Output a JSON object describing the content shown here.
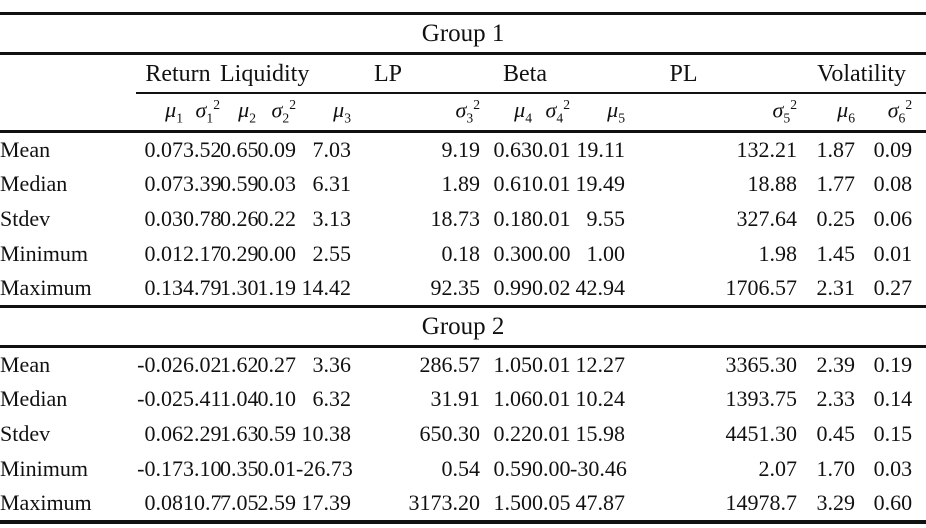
{
  "table": {
    "group1_title": "Group 1",
    "group2_title": "Group 2",
    "variable_headers": [
      "Return",
      "Liquidity",
      "LP",
      "Beta",
      "PL",
      "Volatility"
    ],
    "stat_headers": [
      {
        "base": "μ",
        "sub": "1",
        "sup": ""
      },
      {
        "base": "σ",
        "sub": "1",
        "sup": "2"
      },
      {
        "base": "μ",
        "sub": "2",
        "sup": ""
      },
      {
        "base": "σ",
        "sub": "2",
        "sup": "2"
      },
      {
        "base": "μ",
        "sub": "3",
        "sup": ""
      },
      {
        "base": "σ",
        "sub": "3",
        "sup": "2"
      },
      {
        "base": "μ",
        "sub": "4",
        "sup": ""
      },
      {
        "base": "σ",
        "sub": "4",
        "sup": "2"
      },
      {
        "base": "μ",
        "sub": "5",
        "sup": ""
      },
      {
        "base": "σ",
        "sub": "5",
        "sup": "2"
      },
      {
        "base": "μ",
        "sub": "6",
        "sup": ""
      },
      {
        "base": "σ",
        "sub": "6",
        "sup": "2"
      }
    ],
    "group1_rows": [
      {
        "label": "Mean",
        "values": [
          "0.07",
          "3.52",
          "0.65",
          "0.09",
          "7.03",
          "9.19",
          "0.63",
          "0.01",
          "19.11",
          "132.21",
          "1.87",
          "0.09"
        ]
      },
      {
        "label": "Median",
        "values": [
          "0.07",
          "3.39",
          "0.59",
          "0.03",
          "6.31",
          "1.89",
          "0.61",
          "0.01",
          "19.49",
          "18.88",
          "1.77",
          "0.08"
        ]
      },
      {
        "label": "Stdev",
        "values": [
          "0.03",
          "0.78",
          "0.26",
          "0.22",
          "3.13",
          "18.73",
          "0.18",
          "0.01",
          "9.55",
          "327.64",
          "0.25",
          "0.06"
        ]
      },
      {
        "label": "Minimum",
        "values": [
          "0.01",
          "2.17",
          "0.29",
          "0.00",
          "2.55",
          "0.18",
          "0.30",
          "0.00",
          "1.00",
          "1.98",
          "1.45",
          "0.01"
        ]
      },
      {
        "label": "Maximum",
        "values": [
          "0.13",
          "4.79",
          "1.30",
          "1.19",
          "14.42",
          "92.35",
          "0.99",
          "0.02",
          "42.94",
          "1706.57",
          "2.31",
          "0.27"
        ]
      }
    ],
    "group2_rows": [
      {
        "label": "Mean",
        "values": [
          "-0.02",
          "6.02",
          "1.62",
          "0.27",
          "3.36",
          "286.57",
          "1.05",
          "0.01",
          "12.27",
          "3365.30",
          "2.39",
          "0.19"
        ]
      },
      {
        "label": "Median",
        "values": [
          "-0.02",
          "5.41",
          "1.04",
          "0.10",
          "6.32",
          "31.91",
          "1.06",
          "0.01",
          "10.24",
          "1393.75",
          "2.33",
          "0.14"
        ]
      },
      {
        "label": "Stdev",
        "values": [
          "0.06",
          "2.29",
          "1.63",
          "0.59",
          "10.38",
          "650.30",
          "0.22",
          "0.01",
          "15.98",
          "4451.30",
          "0.45",
          "0.15"
        ]
      },
      {
        "label": "Minimum",
        "values": [
          "-0.17",
          "3.10",
          "0.35",
          "0.01",
          "-26.73",
          "0.54",
          "0.59",
          "0.00",
          "-30.46",
          "2.07",
          "1.70",
          "0.03"
        ]
      },
      {
        "label": "Maximum",
        "values": [
          "0.08",
          "10.7",
          "7.05",
          "2.59",
          "17.39",
          "3173.20",
          "1.50",
          "0.05",
          "47.87",
          "14978.7",
          "3.29",
          "0.60"
        ]
      }
    ]
  }
}
